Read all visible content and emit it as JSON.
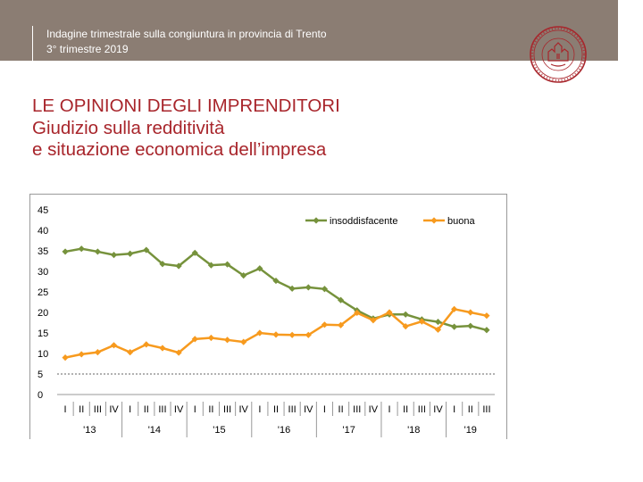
{
  "header": {
    "line1": "Indagine trimestrale sulla congiuntura in provincia di Trento",
    "line2": "3° trimestre 2019"
  },
  "logo": {
    "icon": "seal-logo-icon",
    "color": "#a8252b"
  },
  "title": {
    "line1": "LE OPINIONI DEGLI IMPRENDITORI",
    "line2": "Giudizio sulla redditività",
    "line3": "e situazione economica dell’impresa"
  },
  "colors": {
    "header_bg": "#8b7d73",
    "title": "#a8252b",
    "series_insoddisfacente": "#76923c",
    "series_buona": "#f79a1e"
  },
  "chart_data": {
    "type": "line",
    "title": "",
    "xlabel": "",
    "ylabel": "",
    "ylim": [
      0,
      45
    ],
    "yticks": [
      0,
      5,
      10,
      15,
      20,
      25,
      30,
      35,
      40,
      45
    ],
    "reference_line": 5,
    "legend_position": "top-right",
    "categories": [
      "I",
      "II",
      "III",
      "IV",
      "I",
      "II",
      "III",
      "IV",
      "I",
      "II",
      "III",
      "IV",
      "I",
      "II",
      "III",
      "IV",
      "I",
      "II",
      "III",
      "IV",
      "I",
      "II",
      "III",
      "IV",
      "I",
      "II",
      "III"
    ],
    "years": [
      {
        "label": "'13",
        "start": 0,
        "end": 3
      },
      {
        "label": "'14",
        "start": 4,
        "end": 7
      },
      {
        "label": "'15",
        "start": 8,
        "end": 11
      },
      {
        "label": "'16",
        "start": 12,
        "end": 15
      },
      {
        "label": "'17",
        "start": 16,
        "end": 19
      },
      {
        "label": "'18",
        "start": 20,
        "end": 23
      },
      {
        "label": "'19",
        "start": 24,
        "end": 26
      }
    ],
    "series": [
      {
        "name": "insoddisfacente",
        "color": "#76923c",
        "marker": "diamond",
        "values": [
          34.8,
          35.5,
          34.8,
          34.0,
          34.3,
          35.2,
          31.8,
          31.3,
          34.5,
          31.5,
          31.7,
          29.0,
          30.7,
          27.7,
          25.8,
          26.1,
          25.7,
          23.0,
          20.5,
          18.5,
          19.5,
          19.5,
          18.3,
          17.7,
          16.5,
          16.7,
          15.7
        ]
      },
      {
        "name": "buona",
        "color": "#f79a1e",
        "marker": "diamond",
        "values": [
          9.0,
          9.8,
          10.3,
          12.0,
          10.3,
          12.2,
          11.3,
          10.2,
          13.5,
          13.8,
          13.3,
          12.8,
          15.0,
          14.6,
          14.5,
          14.5,
          17.0,
          16.9,
          19.9,
          18.1,
          20.0,
          16.6,
          17.8,
          15.8,
          20.8,
          20.0,
          19.2
        ]
      }
    ]
  }
}
